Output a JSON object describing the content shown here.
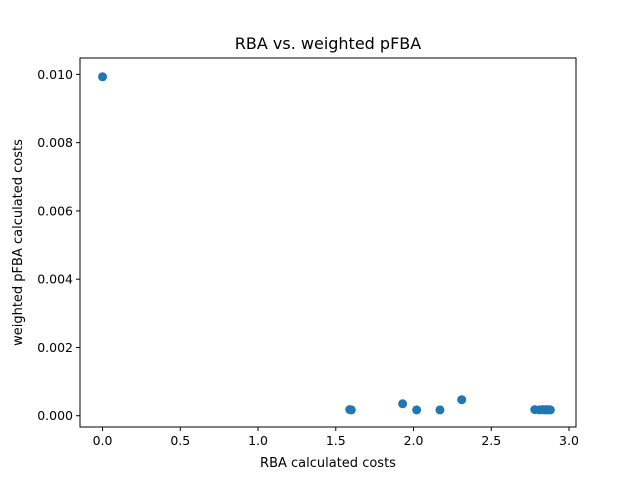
{
  "chart_data": {
    "type": "scatter",
    "title": "RBA vs. weighted pFBA",
    "xlabel": "RBA calculated costs",
    "ylabel": "weighted pFBA calculated costs",
    "xlim": [
      -0.145,
      3.045
    ],
    "ylim": [
      -0.00033,
      0.01048
    ],
    "xticks": [
      0.0,
      0.5,
      1.0,
      1.5,
      2.0,
      2.5,
      3.0
    ],
    "xtick_labels": [
      "0.0",
      "0.5",
      "1.0",
      "1.5",
      "2.0",
      "2.5",
      "3.0"
    ],
    "yticks": [
      0.0,
      0.002,
      0.004,
      0.006,
      0.008,
      0.01
    ],
    "ytick_labels": [
      "0.000",
      "0.002",
      "0.004",
      "0.006",
      "0.008",
      "0.010"
    ],
    "grid": false,
    "marker_color": "#1f77b4",
    "points": [
      {
        "x": 0.0,
        "y": 0.00993
      },
      {
        "x": 1.59,
        "y": 0.00018
      },
      {
        "x": 1.6,
        "y": 0.00017
      },
      {
        "x": 1.93,
        "y": 0.00035
      },
      {
        "x": 2.02,
        "y": 0.00017
      },
      {
        "x": 2.17,
        "y": 0.00017
      },
      {
        "x": 2.31,
        "y": 0.00047
      },
      {
        "x": 2.78,
        "y": 0.00018
      },
      {
        "x": 2.81,
        "y": 0.00017
      },
      {
        "x": 2.83,
        "y": 0.00018
      },
      {
        "x": 2.84,
        "y": 0.00017
      },
      {
        "x": 2.85,
        "y": 0.00018
      },
      {
        "x": 2.86,
        "y": 0.00017
      },
      {
        "x": 2.87,
        "y": 0.00018
      },
      {
        "x": 2.88,
        "y": 0.00017
      }
    ]
  }
}
